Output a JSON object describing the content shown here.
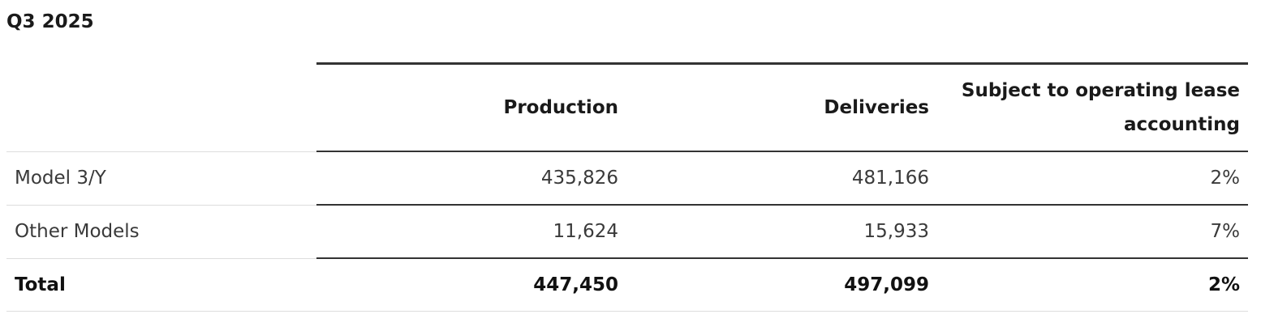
{
  "title": "Q3 2025",
  "table": {
    "columns": [
      "Production",
      "Deliveries",
      "Subject to operating lease accounting"
    ],
    "rows": [
      [
        "Model 3/Y",
        "435,826",
        "481,166",
        "2%"
      ],
      [
        "Other Models",
        "11,624",
        "15,933",
        "7%"
      ],
      [
        "Total",
        "447,450",
        "497,099",
        "2%"
      ]
    ]
  }
}
